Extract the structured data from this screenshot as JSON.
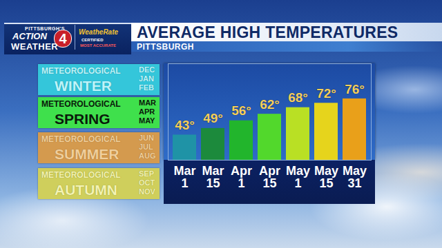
{
  "branding": {
    "station": [
      "PITTSBURGH'S",
      "ACTION",
      "4",
      "WEATHER"
    ],
    "badge": [
      "WeatheRate",
      "CERTIFIED",
      "MOST ACCURATE"
    ]
  },
  "seasons": [
    {
      "line1": "METEOROLOGICAL",
      "name": "WINTER",
      "months": [
        "DEC",
        "JAN",
        "FEB"
      ],
      "color": "#34c6da"
    },
    {
      "line1": "METEOROLOGICAL",
      "name": "SPRING",
      "months": [
        "MAR",
        "APR",
        "MAY"
      ],
      "color": "#3fe04c"
    },
    {
      "line1": "METEOROLOGICAL",
      "name": "SUMMER",
      "months": [
        "JUN",
        "JUL",
        "AUG"
      ],
      "color": "#d49a4e"
    },
    {
      "line1": "METEOROLOGICAL",
      "name": "AUTUMN",
      "months": [
        "SEP",
        "OCT",
        "NOV"
      ],
      "color": "#cfcf5c"
    }
  ],
  "chart_data": {
    "type": "bar",
    "title": "AVERAGE HIGH TEMPERATURES",
    "subtitle": "PITTSBURGH",
    "categories": [
      "Mar 1",
      "Mar 15",
      "Apr 1",
      "Apr 15",
      "May 1",
      "May 15",
      "May 31"
    ],
    "values": [
      43,
      49,
      56,
      62,
      68,
      72,
      76
    ],
    "value_labels": [
      "43°",
      "49°",
      "56°",
      "62°",
      "68°",
      "72°",
      "76°"
    ],
    "colors": [
      "#1f93a6",
      "#1c8a3c",
      "#22b52c",
      "#52d82c",
      "#b9e024",
      "#e6d41c",
      "#e9a01a"
    ],
    "ylim": [
      20,
      108
    ],
    "yticks": [],
    "grid": false,
    "data_labels": true,
    "tick_labels": "x"
  }
}
